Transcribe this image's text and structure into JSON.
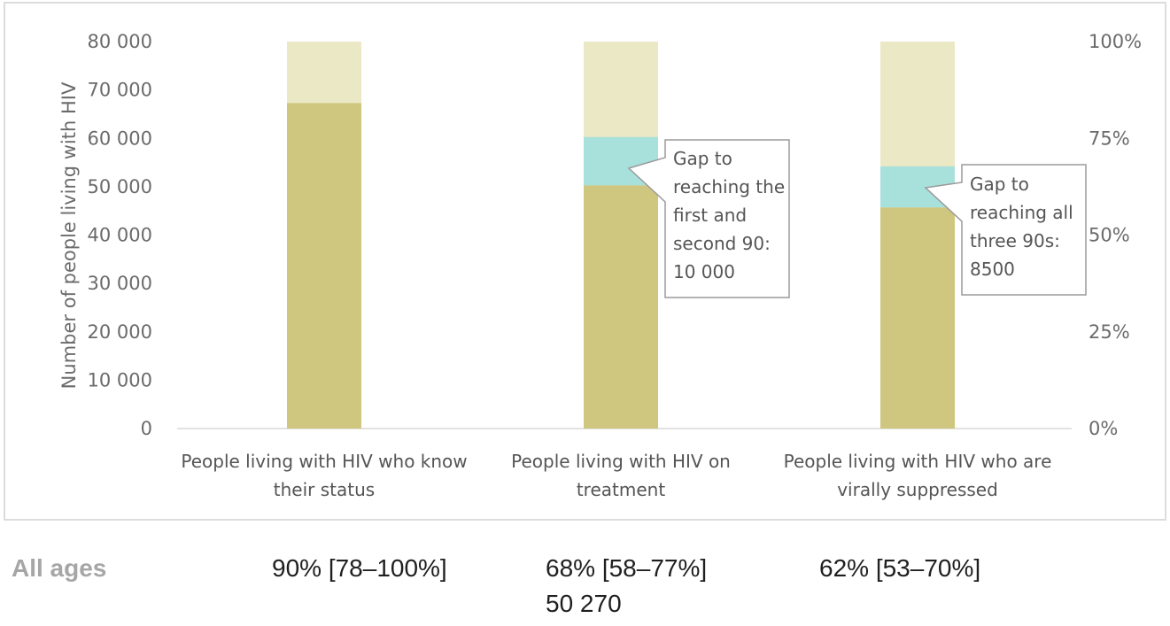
{
  "chart_data": {
    "type": "bar",
    "ylabel": "Number of people living with HIV",
    "ylim": [
      0,
      80000
    ],
    "y_ticks": [
      "80 000",
      "70 000",
      "60 000",
      "50 000",
      "40 000",
      "30 000",
      "20 000",
      "10 000",
      "0"
    ],
    "y2_ticks": [
      "100%",
      "75%",
      "50%",
      "25%",
      "0%"
    ],
    "total_height_value": 80000,
    "categories": [
      [
        "People living with HIV who know",
        "their status"
      ],
      [
        "People living with HIV on",
        "treatment"
      ],
      [
        "People living with HIV who are",
        "virally suppressed"
      ]
    ],
    "series": [
      {
        "values": [
          67300,
          50270,
          45700
        ]
      },
      {
        "values": [
          0,
          10000,
          8500
        ]
      }
    ],
    "annotations": [
      {
        "category_index": 1,
        "lines": [
          "Gap to",
          "reaching the",
          "first and",
          "second 90:",
          "10 000"
        ]
      },
      {
        "category_index": 2,
        "lines": [
          "Gap to",
          "reaching all",
          "three 90s:",
          "8500"
        ]
      }
    ],
    "colors": {
      "achieved": "#cfc77f",
      "gap": "#a8e0dc",
      "remaining": "#ebe8c6"
    }
  },
  "summary": {
    "label": "All ages",
    "values": [
      "90% [78–100%]",
      "68% [58–77%]",
      "62% [53–70%]"
    ],
    "extra": "50 270"
  }
}
